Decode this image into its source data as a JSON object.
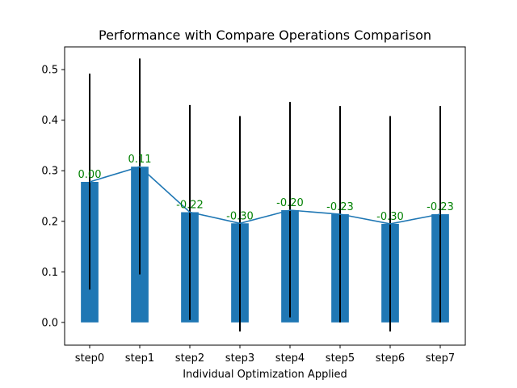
{
  "chart_data": {
    "type": "bar",
    "title": "Performance with Compare Operations Comparison",
    "xlabel": "Individual Optimization Applied",
    "ylabel": "",
    "categories": [
      "step0",
      "step1",
      "step2",
      "step3",
      "step4",
      "step5",
      "step6",
      "step7"
    ],
    "values": [
      0.278,
      0.308,
      0.218,
      0.196,
      0.222,
      0.214,
      0.195,
      0.214
    ],
    "error_low": [
      0.065,
      0.095,
      0.005,
      -0.018,
      0.01,
      0.0,
      -0.018,
      0.0
    ],
    "error_high": [
      0.492,
      0.522,
      0.43,
      0.408,
      0.436,
      0.428,
      0.408,
      0.428
    ],
    "data_labels": [
      "0.00",
      "0.11",
      "-0.22",
      "-0.30",
      "-0.20",
      "-0.23",
      "-0.30",
      "-0.23"
    ],
    "ylim": [
      -0.045,
      0.545
    ],
    "yticks": [
      "0.0",
      "0.1",
      "0.2",
      "0.3",
      "0.4",
      "0.5"
    ],
    "grid": false,
    "colors": {
      "bar": "#1f77b4",
      "line": "#1f77b4",
      "error": "#000000",
      "label": "#008000"
    }
  }
}
